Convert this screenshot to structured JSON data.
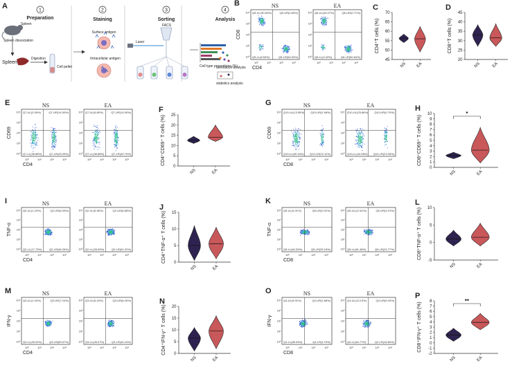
{
  "colors": {
    "ns_fill": "#2e2350",
    "ea_fill": "#c9585a",
    "dot": "#2a55d0",
    "core": "#3cc08a"
  },
  "panels": {
    "A": {
      "label": "A",
      "steps": [
        {
          "num": "1",
          "title": "Preparation"
        },
        {
          "num": "2",
          "title": "Staining"
        },
        {
          "num": "3",
          "title": "Sorting"
        },
        {
          "num": "4",
          "title": "Analysis"
        }
      ],
      "texts": {
        "spleen_top": "Spleen",
        "spleen_dissociation": "Spleen dissociation",
        "spleen": "Spleen",
        "digestion": "Digestion",
        "cell_pellet": "Cell pellet",
        "surface_antigen": "Surface antigen",
        "intracellular_antigen": "Intracellular antigen",
        "facs": "FACS",
        "laser": "Laser",
        "cell_type_proportions": "Cell type proportions (%)",
        "annotation_analysis": "annotation analysis",
        "statistics_analysis": "statistics analysis"
      }
    },
    "B": {
      "label": "B",
      "plots": [
        {
          "group": "NS",
          "x_axis": "CD4",
          "y_axis": "CD8",
          "quads": [
            "Q5-UL(30.63%)",
            "Q5-UR(0.83%)",
            "Q5-LL(8.53%)",
            "Q5-LR(54.63%)"
          ]
        },
        {
          "group": "EA",
          "x_axis": "",
          "y_axis": "",
          "quads": [
            "Q6-UL(34.07%)",
            "Q6-UR(0.71%)",
            "Q6-LL(0.43%)",
            "Q6-LR(50.84%)"
          ]
        }
      ]
    },
    "E": {
      "label": "E",
      "plots": [
        {
          "group": "NS",
          "x_axis": "CD4",
          "y_axis": "CD69",
          "quads": [
            "Q7-UL(3.39%)",
            "Q7-UR(14.50%)",
            "Q7-LL(38.88%)",
            "Q7-LR(43.93%)"
          ]
        },
        {
          "group": "EA",
          "x_axis": "",
          "y_axis": "",
          "quads": [
            "Q7-UL(5.80%)",
            "Q7-UR(14.50%)",
            "Q7-LL(38.88%)",
            "Q7-LR(40.79%)"
          ]
        }
      ]
    },
    "G": {
      "label": "G",
      "plots": [
        {
          "group": "NS",
          "x_axis": "CD8",
          "y_axis": "CD69",
          "quads": [
            "Q10-UL(13.55%)",
            "Q10-UR(1.98%)",
            "Q10-LL(60.34%)",
            "Q10-LR(22.11%)"
          ]
        },
        {
          "group": "EA",
          "x_axis": "",
          "y_axis": "",
          "quads": [
            "Q10-UL(25.86%)",
            "Q10-UR(0.79%)",
            "Q10-LL(44.06%)",
            "Q10-LR(23.28%)"
          ]
        }
      ]
    },
    "I": {
      "label": "I",
      "plots": [
        {
          "group": "NS",
          "x_axis": "CD4",
          "y_axis": "TNF-α",
          "quads": [
            "Q2-UL(1.19%)",
            "Q2-UR(6.93%)",
            "Q2-LL(17.73%)",
            "Q2-LR(46.26%)"
          ]
        },
        {
          "group": "EA",
          "x_axis": "",
          "y_axis": "",
          "quads": [
            "Q2-UL(5.96%)",
            "Q2-UR(6.88%)",
            "Q2-LL(28.09%)",
            "Q2-LR(61.22%)"
          ]
        }
      ]
    },
    "K": {
      "label": "K",
      "plots": [
        {
          "group": "NS",
          "x_axis": "CD8",
          "y_axis": "TNF-α",
          "quads": [
            "Q5-UL(4.01%)",
            "Q5-UR(2.02%)",
            "Q5-LL(64.39%)",
            "Q5-LR(25.18%)"
          ]
        },
        {
          "group": "EA",
          "x_axis": "",
          "y_axis": "",
          "quads": [
            "Q5-UL(12.61%)",
            "Q5-UR(3.19%)",
            "Q5-LL(61.48%)",
            "Q5-LR(22.77%)"
          ]
        }
      ]
    },
    "M": {
      "label": "M",
      "plots": [
        {
          "group": "NS",
          "x_axis": "CD4",
          "y_axis": "IFN-γ",
          "quads": [
            "Q3-UL(1.16%)",
            "Q3-UR(7.24%)",
            "Q3-LL(26.02%)",
            "Q3-LR(65.57%)"
          ]
        },
        {
          "group": "EA",
          "x_axis": "",
          "y_axis": "",
          "quads": [
            "Q3-UL(5.43%)",
            "Q3-UR(6.26%)",
            "Q3-LL(28.07%)",
            "Q3-LR(34.24%)"
          ]
        }
      ]
    },
    "O": {
      "label": "O",
      "plots": [
        {
          "group": "NS",
          "x_axis": "CD8",
          "y_axis": "IFN-γ",
          "quads": [
            "Q4-UL(9.91%)",
            "Q4-UR(1.88%)",
            "Q4-LL(85.93%)",
            "Q4-LR(4.75%)"
          ]
        },
        {
          "group": "EA",
          "x_axis": "",
          "y_axis": "",
          "quads": [
            "Q4-UL(13.13%)",
            "Q4-UR(5.30%)",
            "Q4-LL(64.77%)",
            "Q4-LR(16.80%)"
          ]
        }
      ]
    },
    "flow_ticks": [
      "10⁰",
      "10¹",
      "10²",
      "10³"
    ],
    "flow_ylabels": [
      "10⁴",
      "10³",
      "10²",
      "10¹",
      "10⁰"
    ]
  },
  "chart_data": [
    {
      "panel": "C",
      "type": "violin",
      "ylabel": "CD4⁺T cells (%)",
      "ylim": [
        45,
        70
      ],
      "yticks": [
        "70",
        "65",
        "60",
        "55",
        "50",
        "45"
      ],
      "categories": [
        "NS",
        "EA"
      ],
      "series": [
        {
          "name": "NS",
          "min": 54,
          "median": 56.2,
          "max": 58.5
        },
        {
          "name": "EA",
          "min": 49,
          "median": 56,
          "max": 62.5
        }
      ]
    },
    {
      "panel": "D",
      "type": "violin",
      "ylabel": "CD8⁺T cells (%)",
      "ylim": [
        20,
        45
      ],
      "yticks": [
        "45",
        "40",
        "35",
        "30",
        "25",
        "20"
      ],
      "categories": [
        "NS",
        "EA"
      ],
      "series": [
        {
          "name": "NS",
          "min": 27,
          "median": 33,
          "max": 38.5
        },
        {
          "name": "EA",
          "min": 27,
          "median": 31.5,
          "max": 39
        }
      ]
    },
    {
      "panel": "F",
      "type": "violin",
      "ylabel": "CD4⁺CD69⁺ T cells (%)",
      "ylim": [
        0,
        25
      ],
      "yticks": [
        "25",
        "20",
        "15",
        "10",
        "5",
        "0"
      ],
      "categories": [
        "NS",
        "EA"
      ],
      "series": [
        {
          "name": "NS",
          "min": 11,
          "median": 12.5,
          "max": 14.5
        },
        {
          "name": "EA",
          "min": 12,
          "median": 14,
          "max": 20
        }
      ]
    },
    {
      "panel": "H",
      "type": "violin",
      "ylabel": "CD8⁺CD69⁺ T cells (%)",
      "ylim": [
        0,
        10
      ],
      "yticks": [
        "10",
        "9",
        "8",
        "7",
        "6",
        "5",
        "4",
        "3",
        "2",
        "1",
        "0"
      ],
      "categories": [
        "NS",
        "EA"
      ],
      "significance": "*",
      "series": [
        {
          "name": "NS",
          "min": 1.6,
          "median": 2.2,
          "max": 2.8
        },
        {
          "name": "EA",
          "min": 0.8,
          "median": 3.2,
          "max": 7.4
        }
      ]
    },
    {
      "panel": "J",
      "type": "violin",
      "ylabel": "CD4⁺TNF-α⁺ T cells (%)",
      "ylim": [
        0,
        15
      ],
      "yticks": [
        "15",
        "10",
        "5",
        "0"
      ],
      "categories": [
        "NS",
        "EA"
      ],
      "series": [
        {
          "name": "NS",
          "min": 0.5,
          "median": 5,
          "max": 11
        },
        {
          "name": "EA",
          "min": 1,
          "median": 5.5,
          "max": 10.5
        }
      ]
    },
    {
      "panel": "L",
      "type": "violin",
      "ylabel": "CD8⁺TNF-α⁺ T cells (%)",
      "ylim": [
        -5,
        10
      ],
      "yticks": [
        "10",
        "5",
        "0",
        "-5"
      ],
      "categories": [
        "NS",
        "EA"
      ],
      "series": [
        {
          "name": "NS",
          "min": -1,
          "median": 1,
          "max": 3.5
        },
        {
          "name": "EA",
          "min": -1,
          "median": 1.5,
          "max": 5.5
        }
      ]
    },
    {
      "panel": "N",
      "type": "violin",
      "ylabel": "CD4⁺IFN-γ⁺ T cells (%)",
      "ylim": [
        0,
        20
      ],
      "yticks": [
        "20",
        "15",
        "10",
        "5",
        "0"
      ],
      "categories": [
        "NS",
        "EA"
      ],
      "series": [
        {
          "name": "NS",
          "min": 1,
          "median": 6.5,
          "max": 11
        },
        {
          "name": "EA",
          "min": 2,
          "median": 9.5,
          "max": 16
        }
      ]
    },
    {
      "panel": "P",
      "type": "violin",
      "ylabel": "CD8⁺IFN-γ⁺ T cells (%)",
      "ylim": [
        -2,
        8
      ],
      "yticks": [
        "8",
        "7",
        "6",
        "5",
        "4",
        "3",
        "2",
        "1",
        "0",
        "-1",
        "-2"
      ],
      "categories": [
        "NS",
        "EA"
      ],
      "significance": "**",
      "series": [
        {
          "name": "NS",
          "min": 0.3,
          "median": 1.5,
          "max": 2.8
        },
        {
          "name": "EA",
          "min": 2.5,
          "median": 3.9,
          "max": 5.6
        }
      ]
    }
  ]
}
